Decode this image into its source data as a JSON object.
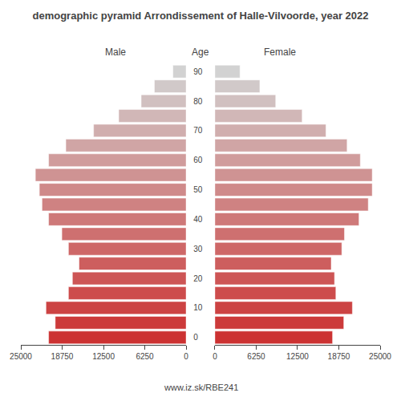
{
  "chart_data": {
    "type": "pyramid",
    "title": "demographic pyramid Arrondissement of Halle-Vilvoorde, year 2022",
    "orientation": "horizontal",
    "ylabel": "Age",
    "categories": [
      "0",
      null,
      "10",
      null,
      "20",
      null,
      "30",
      null,
      "40",
      null,
      "50",
      null,
      "60",
      null,
      "70",
      null,
      "80",
      null,
      "90"
    ],
    "series": [
      {
        "name": "Male",
        "values": [
          20800,
          19800,
          21200,
          17800,
          17200,
          16200,
          17800,
          18800,
          20800,
          21800,
          22200,
          22800,
          20800,
          18200,
          14000,
          10200,
          6800,
          4800,
          2000
        ]
      },
      {
        "name": "Female",
        "values": [
          17800,
          19500,
          20800,
          18300,
          18100,
          17600,
          19200,
          19600,
          21800,
          23200,
          23800,
          23800,
          22000,
          20000,
          16800,
          13200,
          9200,
          6800,
          3800
        ]
      }
    ],
    "colors": [
      "#cc3232",
      "#cc3a3a",
      "#cc4343",
      "#cd4c4c",
      "#cd5555",
      "#cd5e5e",
      "#ce6767",
      "#ce7070",
      "#ce7979",
      "#cf8282",
      "#cf8a8a",
      "#cf9393",
      "#d09c9c",
      "#d0a5a5",
      "#d0aeae",
      "#d1b7b7",
      "#d1c0c0",
      "#d1c9c9",
      "#d2d2d2"
    ],
    "xlim": [
      0,
      25000
    ],
    "xticks": [
      0,
      6250,
      12500,
      18750,
      25000
    ],
    "grid": false,
    "annotations": [
      "www.iz.sk/RBE241"
    ]
  }
}
